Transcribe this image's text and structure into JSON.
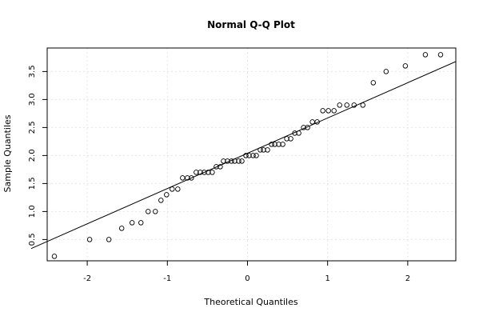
{
  "chart_data": {
    "type": "scatter",
    "title": "Normal Q-Q Plot",
    "xlabel": "Theoretical Quantiles",
    "ylabel": "Sample Quantiles",
    "xlim": [
      -2.5,
      2.6
    ],
    "ylim": [
      0.12,
      3.92
    ],
    "grid": true,
    "x_ticks": [
      -2,
      -1,
      0,
      1,
      2
    ],
    "x_tick_labels": [
      "-2",
      "-1",
      "0",
      "1",
      "2"
    ],
    "y_ticks": [
      0.5,
      1.0,
      1.5,
      2.0,
      2.5,
      3.0,
      3.5
    ],
    "y_tick_labels": [
      "0.5",
      "1.0",
      "1.5",
      "2.0",
      "2.5",
      "3.0",
      "3.5"
    ],
    "reference_line": {
      "intercept": 2.04,
      "slope": 0.63
    },
    "points": [
      {
        "x": -2.41,
        "y": 0.2
      },
      {
        "x": -1.97,
        "y": 0.5
      },
      {
        "x": -1.73,
        "y": 0.5
      },
      {
        "x": -1.57,
        "y": 0.7
      },
      {
        "x": -1.44,
        "y": 0.8
      },
      {
        "x": -1.33,
        "y": 0.8
      },
      {
        "x": -1.24,
        "y": 1.0
      },
      {
        "x": -1.15,
        "y": 1.0
      },
      {
        "x": -1.08,
        "y": 1.2
      },
      {
        "x": -1.01,
        "y": 1.3
      },
      {
        "x": -0.94,
        "y": 1.4
      },
      {
        "x": -0.87,
        "y": 1.4
      },
      {
        "x": -0.81,
        "y": 1.6
      },
      {
        "x": -0.75,
        "y": 1.6
      },
      {
        "x": -0.7,
        "y": 1.6
      },
      {
        "x": -0.64,
        "y": 1.7
      },
      {
        "x": -0.59,
        "y": 1.7
      },
      {
        "x": -0.54,
        "y": 1.7
      },
      {
        "x": -0.49,
        "y": 1.7
      },
      {
        "x": -0.44,
        "y": 1.7
      },
      {
        "x": -0.39,
        "y": 1.8
      },
      {
        "x": -0.34,
        "y": 1.8
      },
      {
        "x": -0.3,
        "y": 1.9
      },
      {
        "x": -0.25,
        "y": 1.9
      },
      {
        "x": -0.2,
        "y": 1.9
      },
      {
        "x": -0.16,
        "y": 1.9
      },
      {
        "x": -0.11,
        "y": 1.9
      },
      {
        "x": -0.07,
        "y": 1.9
      },
      {
        "x": -0.02,
        "y": 2.0
      },
      {
        "x": 0.02,
        "y": 2.0
      },
      {
        "x": 0.07,
        "y": 2.0
      },
      {
        "x": 0.11,
        "y": 2.0
      },
      {
        "x": 0.16,
        "y": 2.1
      },
      {
        "x": 0.2,
        "y": 2.1
      },
      {
        "x": 0.25,
        "y": 2.1
      },
      {
        "x": 0.3,
        "y": 2.2
      },
      {
        "x": 0.34,
        "y": 2.2
      },
      {
        "x": 0.39,
        "y": 2.2
      },
      {
        "x": 0.44,
        "y": 2.2
      },
      {
        "x": 0.49,
        "y": 2.3
      },
      {
        "x": 0.54,
        "y": 2.3
      },
      {
        "x": 0.59,
        "y": 2.4
      },
      {
        "x": 0.64,
        "y": 2.4
      },
      {
        "x": 0.7,
        "y": 2.5
      },
      {
        "x": 0.75,
        "y": 2.5
      },
      {
        "x": 0.81,
        "y": 2.6
      },
      {
        "x": 0.87,
        "y": 2.6
      },
      {
        "x": 0.94,
        "y": 2.8
      },
      {
        "x": 1.01,
        "y": 2.8
      },
      {
        "x": 1.08,
        "y": 2.8
      },
      {
        "x": 1.15,
        "y": 2.9
      },
      {
        "x": 1.24,
        "y": 2.9
      },
      {
        "x": 1.33,
        "y": 2.9
      },
      {
        "x": 1.44,
        "y": 2.9
      },
      {
        "x": 1.57,
        "y": 3.3
      },
      {
        "x": 1.73,
        "y": 3.5
      },
      {
        "x": 1.97,
        "y": 3.6
      },
      {
        "x": 2.22,
        "y": 3.8
      },
      {
        "x": 2.41,
        "y": 3.8
      }
    ]
  }
}
